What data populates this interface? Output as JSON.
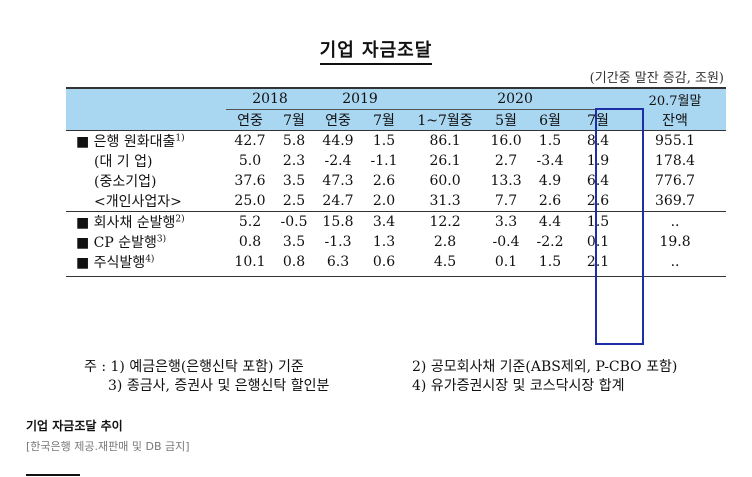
{
  "title": "기업 자금조달",
  "unit": "(기간중 말잔 증감, 조원)",
  "header": {
    "years": [
      "2018",
      "2019",
      "2020"
    ],
    "balance_label_1": "20.7월말",
    "balance_label_2": "잔액",
    "sub": [
      "연중",
      "7월",
      "연중",
      "7월",
      "1~7월중",
      "5월",
      "6월",
      "7월"
    ]
  },
  "rows": [
    {
      "label": "■ 은행 원화대출",
      "sup": "1)",
      "vals": [
        "42.7",
        "5.8",
        "44.9",
        "1.5",
        "86.1",
        "16.0",
        "1.5",
        "8.4",
        "955.1"
      ]
    },
    {
      "label": "(대 기 업)",
      "sup": "",
      "vals": [
        "5.0",
        "2.3",
        "-2.4",
        "-1.1",
        "26.1",
        "2.7",
        "-3.4",
        "1.9",
        "178.4"
      ]
    },
    {
      "label": "(중소기업)",
      "sup": "",
      "vals": [
        "37.6",
        "3.5",
        "47.3",
        "2.6",
        "60.0",
        "13.3",
        "4.9",
        "6.4",
        "776.7"
      ]
    },
    {
      "label": "<개인사업자>",
      "sup": "",
      "vals": [
        "25.0",
        "2.5",
        "24.7",
        "2.0",
        "31.3",
        "7.7",
        "2.6",
        "2.6",
        "369.7"
      ]
    },
    {
      "label": "■ 회사채 순발행",
      "sup": "2)",
      "vals": [
        "5.2",
        "-0.5",
        "15.8",
        "3.4",
        "12.2",
        "3.3",
        "4.4",
        "1.5",
        ".."
      ]
    },
    {
      "label": "■ CP 순발행",
      "sup": "3)",
      "vals": [
        "0.8",
        "3.5",
        "-1.3",
        "1.3",
        "2.8",
        "-0.4",
        "-2.2",
        "0.1",
        "19.8"
      ]
    },
    {
      "label": "■ 주식발행",
      "sup": "4)",
      "vals": [
        "10.1",
        "0.8",
        "6.3",
        "0.6",
        "4.5",
        "0.1",
        "1.5",
        "2.1",
        ".."
      ]
    }
  ],
  "notes": {
    "n1": "주 : 1) 예금은행(은행신탁 포함) 기준",
    "n2": "2) 공모회사채 기준(ABS제외, P-CBO 포함)",
    "n3": "3) 종금사, 증권사 및 은행신탁 할인분",
    "n4": "4) 유가증권시장 및 코스닥시장 합계"
  },
  "caption": "기업 자금조달 추이",
  "credit": "[한국은행 제공.재판매 및 DB 금지]"
}
